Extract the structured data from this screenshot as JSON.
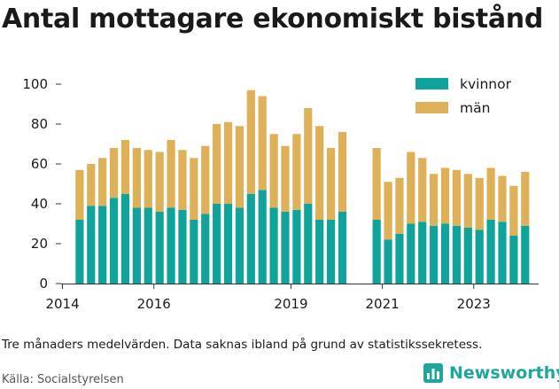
{
  "title": "Antal mottagare ekonomiskt bistånd",
  "note": "Tre månaders medelvärden. Data saknas ibland på grund av statistikssekretess.",
  "source": "Källa: Socialstyrelsen",
  "brand": "Newsworthy",
  "colors": {
    "kvinnor": "#0fa39b",
    "man": "#deb058",
    "brand": "#1fa69d",
    "axis": "#333333"
  },
  "chart_data": {
    "type": "bar",
    "stacked": true,
    "ylim": [
      0,
      100
    ],
    "yticks": [
      0,
      20,
      40,
      60,
      80,
      100
    ],
    "xticks": [
      {
        "label": "2014",
        "year": 2014
      },
      {
        "label": "2016",
        "year": 2016
      },
      {
        "label": "2019",
        "year": 2019
      },
      {
        "label": "2021",
        "year": 2021
      },
      {
        "label": "2023",
        "year": 2023
      }
    ],
    "xrange": [
      2013.97,
      2024.42
    ],
    "legend_position": "top-right",
    "grid": false,
    "series": [
      {
        "name": "kvinnor",
        "key": "kvinnor"
      },
      {
        "name": "män",
        "key": "man"
      }
    ],
    "bars": [
      {
        "period": "2014-Q2",
        "kvinnor": 32,
        "man": 25
      },
      {
        "period": "2014-Q3",
        "kvinnor": 39,
        "man": 21
      },
      {
        "period": "2014-Q4",
        "kvinnor": 39,
        "man": 24
      },
      {
        "period": "2015-Q1",
        "kvinnor": 43,
        "man": 25
      },
      {
        "period": "2015-Q2",
        "kvinnor": 45,
        "man": 27
      },
      {
        "period": "2015-Q3",
        "kvinnor": 38,
        "man": 30
      },
      {
        "period": "2015-Q4",
        "kvinnor": 38,
        "man": 29
      },
      {
        "period": "2016-Q1",
        "kvinnor": 36,
        "man": 30
      },
      {
        "period": "2016-Q2",
        "kvinnor": 38,
        "man": 34
      },
      {
        "period": "2016-Q3",
        "kvinnor": 37,
        "man": 30
      },
      {
        "period": "2016-Q4",
        "kvinnor": 32,
        "man": 31
      },
      {
        "period": "2017-Q1",
        "kvinnor": 35,
        "man": 34
      },
      {
        "period": "2017-Q2",
        "kvinnor": 40,
        "man": 40
      },
      {
        "period": "2017-Q3",
        "kvinnor": 40,
        "man": 41
      },
      {
        "period": "2017-Q4",
        "kvinnor": 38,
        "man": 41
      },
      {
        "period": "2018-Q1",
        "kvinnor": 45,
        "man": 52
      },
      {
        "period": "2018-Q2",
        "kvinnor": 47,
        "man": 47
      },
      {
        "period": "2018-Q3",
        "kvinnor": 38,
        "man": 37
      },
      {
        "period": "2018-Q4",
        "kvinnor": 36,
        "man": 33
      },
      {
        "period": "2019-Q1",
        "kvinnor": 37,
        "man": 38
      },
      {
        "period": "2019-Q2",
        "kvinnor": 40,
        "man": 48
      },
      {
        "period": "2019-Q3",
        "kvinnor": 32,
        "man": 47
      },
      {
        "period": "2019-Q4",
        "kvinnor": 32,
        "man": 36
      },
      {
        "period": "2020-Q1",
        "kvinnor": 36,
        "man": 40
      },
      {
        "period": "2020-Q4",
        "kvinnor": 32,
        "man": 36
      },
      {
        "period": "2021-Q1",
        "kvinnor": 22,
        "man": 29
      },
      {
        "period": "2021-Q2",
        "kvinnor": 25,
        "man": 28
      },
      {
        "period": "2021-Q3",
        "kvinnor": 30,
        "man": 36
      },
      {
        "period": "2021-Q4",
        "kvinnor": 31,
        "man": 32
      },
      {
        "period": "2022-Q1",
        "kvinnor": 29,
        "man": 26
      },
      {
        "period": "2022-Q2",
        "kvinnor": 30,
        "man": 28
      },
      {
        "period": "2022-Q3",
        "kvinnor": 29,
        "man": 28
      },
      {
        "period": "2022-Q4",
        "kvinnor": 28,
        "man": 27
      },
      {
        "period": "2023-Q1",
        "kvinnor": 27,
        "man": 26
      },
      {
        "period": "2023-Q2",
        "kvinnor": 32,
        "man": 26
      },
      {
        "period": "2023-Q3",
        "kvinnor": 31,
        "man": 23
      },
      {
        "period": "2023-Q4",
        "kvinnor": 24,
        "man": 25
      },
      {
        "period": "2024-Q1",
        "kvinnor": 29,
        "man": 27
      }
    ]
  }
}
